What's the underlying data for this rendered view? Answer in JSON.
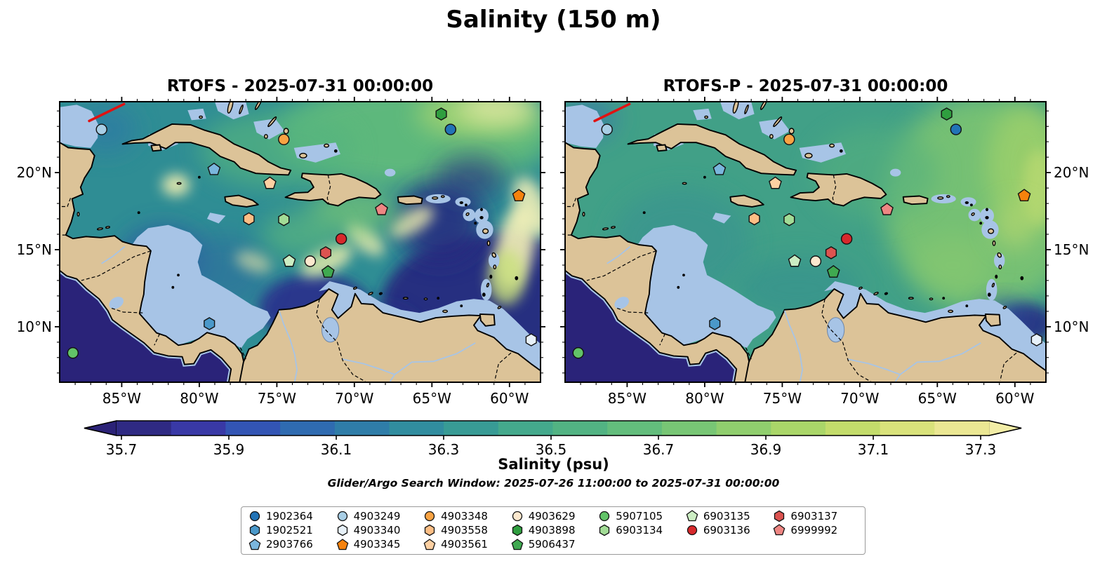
{
  "title": "Salinity (150 m)",
  "chart_data": {
    "type": "map-contour-scatter",
    "panels": [
      {
        "name": "RTOFS",
        "title": "RTOFS - 2025-07-31 00:00:00"
      },
      {
        "name": "RTOFS-P",
        "title": "RTOFS-P - 2025-07-31 00:00:00"
      }
    ],
    "extent": {
      "lon_min": -89,
      "lon_max": -58,
      "lat_min": 6.4,
      "lat_max": 24.6
    },
    "axes": {
      "lon_tick_values": [
        -85,
        -80,
        -75,
        -70,
        -65,
        -60
      ],
      "lon_tick_labels": [
        "85°W",
        "80°W",
        "75°W",
        "70°W",
        "65°W",
        "60°W"
      ],
      "lat_tick_values": [
        20,
        15,
        10
      ],
      "lat_tick_labels": [
        "20°N",
        "15°N",
        "10°N"
      ],
      "minor_tick_step_deg": 1
    },
    "colorbar": {
      "label": "Salinity (psu)",
      "ticks": [
        35.7,
        35.9,
        36.1,
        36.3,
        36.5,
        36.7,
        36.9,
        37.1,
        37.3
      ],
      "segment_colors": [
        "#2f2a83",
        "#3939a6",
        "#3355b4",
        "#2f6bb0",
        "#2f7da8",
        "#318d9f",
        "#389b95",
        "#44a98c",
        "#52b383",
        "#63bd7c",
        "#78c675",
        "#90ce6e",
        "#aad669",
        "#c3dc6b",
        "#d9e27b",
        "#ebe793"
      ],
      "left_arrow_color": "#2b2277",
      "right_arrow_color": "#f2eda6"
    },
    "platforms": [
      {
        "id": "1902364",
        "marker": "circle",
        "color": "#2273b6",
        "lon": -63.8,
        "lat": 22.8
      },
      {
        "id": "1902521",
        "marker": "hexagon",
        "color": "#4a98c9",
        "lon": -79.35,
        "lat": 10.2
      },
      {
        "id": "2903766",
        "marker": "pentagon",
        "color": "#7ab6dd",
        "lon": -79.05,
        "lat": 20.2
      },
      {
        "id": "4903249",
        "marker": "circle",
        "color": "#a8cee5",
        "lon": -86.3,
        "lat": 22.8
      },
      {
        "id": "4903340",
        "marker": "hexagon",
        "color": "#e7f1f9",
        "lon": -58.6,
        "lat": 9.15
      },
      {
        "id": "4903345",
        "marker": "pentagon",
        "color": "#f5820d",
        "lon": -59.4,
        "lat": 18.5
      },
      {
        "id": "4903348",
        "marker": "circle",
        "color": "#f9a343",
        "lon": -74.55,
        "lat": 22.15
      },
      {
        "id": "4903558",
        "marker": "hexagon",
        "color": "#fdbe85",
        "lon": -76.8,
        "lat": 17.0
      },
      {
        "id": "4903561",
        "marker": "pentagon",
        "color": "#fdd0a2",
        "lon": -75.45,
        "lat": 19.3
      },
      {
        "id": "4903629",
        "marker": "circle",
        "color": "#fce8ce",
        "lon": -72.85,
        "lat": 14.25
      },
      {
        "id": "4903898",
        "marker": "hexagon",
        "color": "#2f9e3f",
        "lon": -64.4,
        "lat": 23.8
      },
      {
        "id": "5906437",
        "marker": "pentagon",
        "color": "#3fa950",
        "lon": -71.7,
        "lat": 13.55
      },
      {
        "id": "5907105",
        "marker": "circle",
        "color": "#62c368",
        "lon": -88.15,
        "lat": 8.3
      },
      {
        "id": "6903134",
        "marker": "hexagon",
        "color": "#a2dc96",
        "lon": -74.55,
        "lat": 16.95
      },
      {
        "id": "6903135",
        "marker": "pentagon",
        "color": "#ccedc3",
        "lon": -74.2,
        "lat": 14.25
      },
      {
        "id": "6903136",
        "marker": "circle",
        "color": "#d7292c",
        "lon": -70.85,
        "lat": 15.7
      },
      {
        "id": "6903137",
        "marker": "hexagon",
        "color": "#dc5350",
        "lon": -71.85,
        "lat": 14.8
      },
      {
        "id": "6999992",
        "marker": "pentagon",
        "color": "#ee8683",
        "lon": -68.25,
        "lat": 17.6
      }
    ],
    "glider_track": {
      "color": "#e01212",
      "points": [
        [
          -87.1,
          23.35
        ],
        [
          -84.85,
          24.45
        ]
      ]
    },
    "map_colors": {
      "land": "#dcc398",
      "shallow_water": "#a7c4e6",
      "coastline": "#000000",
      "pacific_deep": "#2a2379",
      "ocean_base_rtofs": "#2f8d94",
      "ocean_base_rtofsp": "#41a087"
    }
  },
  "footer": {
    "search_window": "Glider/Argo Search Window: 2025-07-26 11:00:00 to 2025-07-31 00:00:00"
  }
}
